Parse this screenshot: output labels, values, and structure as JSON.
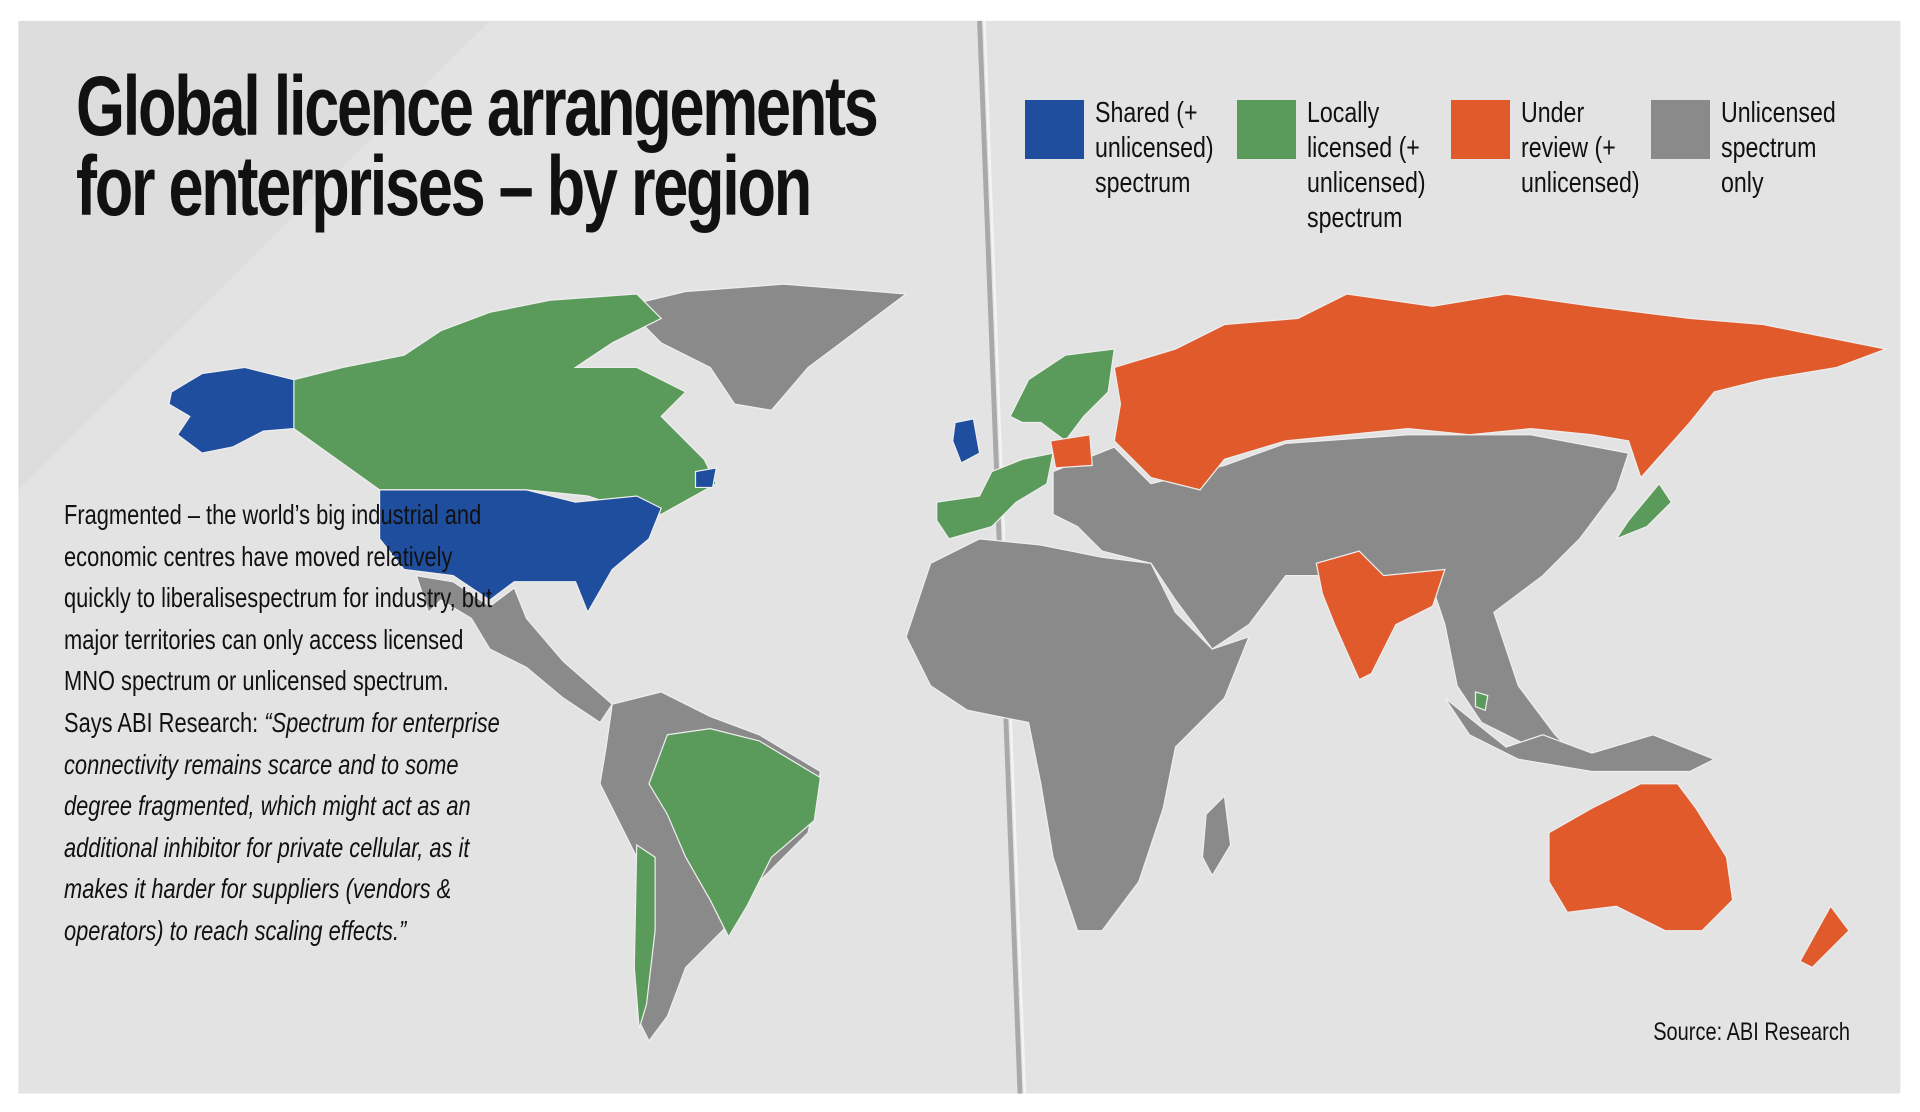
{
  "title": [
    "Global licence arrangements",
    "for enterprises – by region"
  ],
  "legend": [
    {
      "label": "Shared (+ unlicensed) spectrum",
      "color": "#1f4e9e"
    },
    {
      "label": "Locally licensed (+ unlicensed) spectrum",
      "color": "#5a9a5a"
    },
    {
      "label": "Under review (+ unlicensed)",
      "color": "#e05a2b"
    },
    {
      "label": "Unlicensed spectrum only",
      "color": "#8a8a8a"
    }
  ],
  "body": {
    "intro": "Fragmented – the world’s big industrial and economic centres have moved relatively quickly to liberalisespectrum for industry, but major territories can only access licensed MNO spectrum or unlicensed spectrum.",
    "attribution": "Says ABI Research:",
    "quote": "“Spectrum for enterprise connectivity remains scarce and to some degree fragmented, which might act as an additional inhibitor for private cellular, as it makes it harder for suppliers (vendors & operators) to reach scaling effects.”"
  },
  "source": "Source: ABI Research"
}
